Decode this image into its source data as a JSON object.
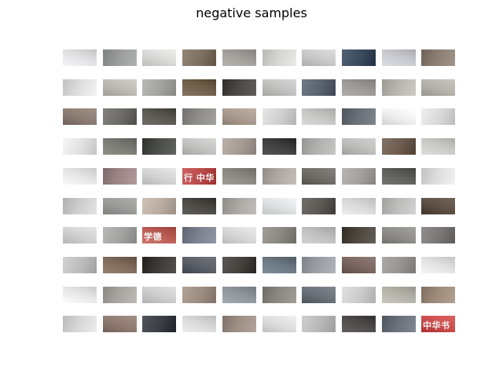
{
  "title": "negative samples",
  "tile_texts": [
    {
      "row": 4,
      "col": 3,
      "text": "行 中华"
    },
    {
      "row": 6,
      "col": 2,
      "text": "学德"
    },
    {
      "row": 9,
      "col": 9,
      "text": "中华书"
    }
  ],
  "tiles": [
    [
      "#e0e0e2",
      "#9a9c9c",
      "#d8d8d6",
      "#7d6f5f",
      "#a09e98",
      "#d4d4d2",
      "#c8c8c8",
      "#3b4a5c",
      "#c6c8ce",
      "#8a7e74"
    ],
    [
      "#dcdcdc",
      "#bcb8b2",
      "#a2a2a0",
      "#6e5e4a",
      "#4a4844",
      "#c0c0be",
      "#5a6270",
      "#9a9894",
      "#b8b4ae",
      "#b4b0aa"
    ],
    [
      "#8a7c72",
      "#6c6a66",
      "#5a5650",
      "#8e8c88",
      "#a89a8e",
      "#cfcfcf",
      "#c4c4c2",
      "#6a6e76",
      "#eeeeee",
      "#d8d8d8"
    ],
    [
      "#e0e0e0",
      "#7a7a74",
      "#4a4c48",
      "#c2c2c0",
      "#a59a94",
      "#3e3e3e",
      "#b0b0ae",
      "#bcbcba",
      "#6c5c50",
      "#c8c8c4"
    ],
    [
      "#e4e4e4",
      "#9a8486",
      "#d2d2d2",
      "#b84a4a",
      "#8a8680",
      "#aea8a2",
      "#6e6c66",
      "#a2a09c",
      "#5e5e5c",
      "#dcdcdc"
    ],
    [
      "#cccccc",
      "#9a9a98",
      "#b8aca2",
      "#4a4842",
      "#aaa8a2",
      "#dce0e0",
      "#5a5852",
      "#d8d8d8",
      "#bcbcba",
      "#5c5044"
    ],
    [
      "#d0d0d0",
      "#a2a2a0",
      "#b85c54",
      "#7a808e",
      "#d6d6d6",
      "#8a8682",
      "#bebebe",
      "#4c4840",
      "#8e8c88",
      "#7a7676"
    ],
    [
      "#bcbcbc",
      "#7e6a5a",
      "#3c3a36",
      "#5a5e66",
      "#44403c",
      "#6a7680",
      "#9a9ea4",
      "#7a6660",
      "#969492",
      "#e0e0e0"
    ],
    [
      "#e6e6e6",
      "#a6a49e",
      "#cccccc",
      "#9a8c80",
      "#8e969c",
      "#8a8680",
      "#6a7078",
      "#cacaca",
      "#b2b2a8",
      "#9c8a7a"
    ],
    [
      "#d6d6d6",
      "#8e7a70",
      "#3a3e44",
      "#d8d8d8",
      "#9c8e84",
      "#dcdcdc",
      "#b8b8b8",
      "#4e4a4a",
      "#6a707a",
      "#c84c4c"
    ]
  ]
}
